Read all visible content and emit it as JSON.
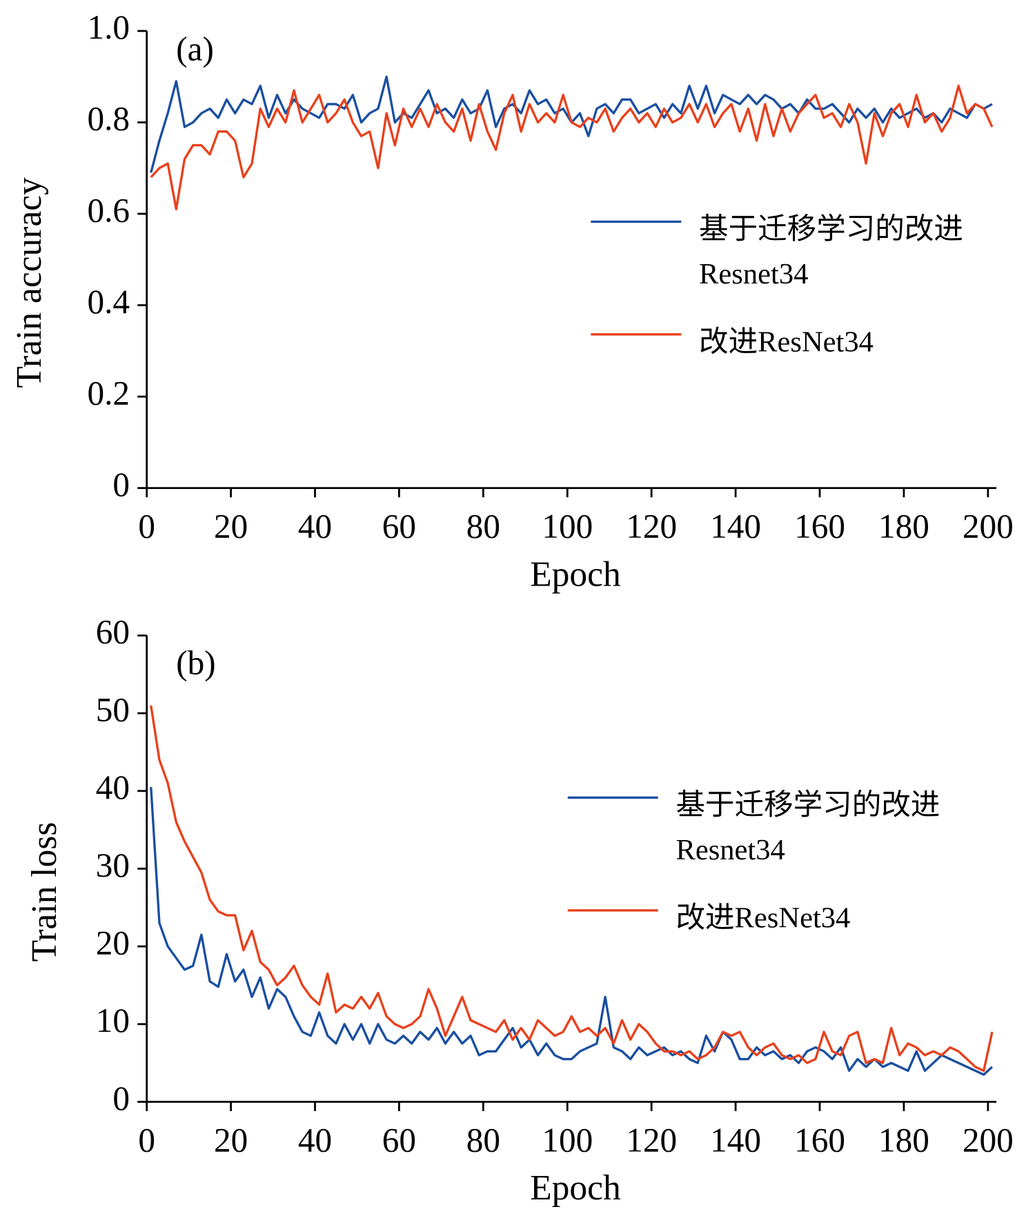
{
  "chart_data": [
    {
      "type": "line",
      "annotation": "(a)",
      "xlabel": "Epoch",
      "ylabel": "Train accuracy",
      "legend": "center right",
      "xlim": [
        0,
        202
      ],
      "ylim": [
        0,
        1
      ],
      "xticks": [
        0,
        20,
        40,
        60,
        80,
        100,
        120,
        140,
        160,
        180,
        200
      ],
      "yticks": [
        0,
        0.2,
        0.4,
        0.6,
        0.8,
        {
          "value": 1,
          "label": "1.0"
        }
      ],
      "x": [
        1,
        3,
        5,
        7,
        9,
        11,
        13,
        15,
        17,
        19,
        21,
        23,
        25,
        27,
        29,
        31,
        33,
        35,
        37,
        39,
        41,
        43,
        45,
        47,
        49,
        51,
        53,
        55,
        57,
        59,
        61,
        63,
        65,
        67,
        69,
        71,
        73,
        75,
        77,
        79,
        81,
        83,
        85,
        87,
        89,
        91,
        93,
        95,
        97,
        99,
        101,
        103,
        105,
        107,
        109,
        111,
        113,
        115,
        117,
        119,
        121,
        123,
        125,
        127,
        129,
        131,
        133,
        135,
        137,
        139,
        141,
        143,
        145,
        147,
        149,
        151,
        153,
        155,
        157,
        159,
        161,
        163,
        165,
        167,
        169,
        171,
        173,
        175,
        177,
        179,
        181,
        183,
        185,
        187,
        189,
        191,
        193,
        195,
        197,
        199,
        201
      ],
      "series": [
        {
          "name": "基于迁移学习的改进Resnet34",
          "color": "#1a4fa0",
          "values": [
            0.69,
            0.76,
            0.82,
            0.89,
            0.79,
            0.8,
            0.82,
            0.83,
            0.81,
            0.85,
            0.82,
            0.85,
            0.84,
            0.88,
            0.81,
            0.86,
            0.82,
            0.85,
            0.83,
            0.82,
            0.81,
            0.84,
            0.84,
            0.83,
            0.86,
            0.8,
            0.82,
            0.83,
            0.9,
            0.8,
            0.82,
            0.81,
            0.84,
            0.87,
            0.82,
            0.83,
            0.81,
            0.85,
            0.82,
            0.83,
            0.87,
            0.79,
            0.83,
            0.84,
            0.82,
            0.87,
            0.84,
            0.85,
            0.82,
            0.83,
            0.8,
            0.82,
            0.77,
            0.83,
            0.84,
            0.82,
            0.85,
            0.85,
            0.82,
            0.83,
            0.84,
            0.81,
            0.84,
            0.82,
            0.88,
            0.83,
            0.88,
            0.82,
            0.86,
            0.85,
            0.84,
            0.86,
            0.84,
            0.86,
            0.85,
            0.83,
            0.84,
            0.82,
            0.85,
            0.83,
            0.83,
            0.84,
            0.82,
            0.8,
            0.83,
            0.81,
            0.83,
            0.8,
            0.83,
            0.81,
            0.82,
            0.83,
            0.81,
            0.82,
            0.8,
            0.83,
            0.82,
            0.81,
            0.84,
            0.83,
            0.84
          ]
        },
        {
          "name": "改进ResNet34",
          "color": "#e8401c",
          "values": [
            0.68,
            0.7,
            0.71,
            0.61,
            0.72,
            0.75,
            0.75,
            0.73,
            0.78,
            0.78,
            0.76,
            0.68,
            0.71,
            0.83,
            0.79,
            0.83,
            0.8,
            0.87,
            0.8,
            0.83,
            0.86,
            0.8,
            0.82,
            0.85,
            0.8,
            0.77,
            0.78,
            0.7,
            0.82,
            0.75,
            0.83,
            0.79,
            0.83,
            0.79,
            0.84,
            0.8,
            0.78,
            0.83,
            0.76,
            0.84,
            0.78,
            0.74,
            0.82,
            0.86,
            0.78,
            0.84,
            0.8,
            0.82,
            0.8,
            0.86,
            0.8,
            0.79,
            0.81,
            0.8,
            0.83,
            0.78,
            0.81,
            0.83,
            0.8,
            0.82,
            0.79,
            0.83,
            0.8,
            0.81,
            0.84,
            0.8,
            0.84,
            0.79,
            0.82,
            0.84,
            0.78,
            0.83,
            0.76,
            0.84,
            0.77,
            0.83,
            0.78,
            0.82,
            0.84,
            0.86,
            0.81,
            0.82,
            0.79,
            0.84,
            0.8,
            0.71,
            0.82,
            0.77,
            0.82,
            0.84,
            0.79,
            0.86,
            0.8,
            0.82,
            0.78,
            0.81,
            0.88,
            0.82,
            0.84,
            0.83,
            0.79
          ]
        }
      ]
    },
    {
      "type": "line",
      "annotation": "(b)",
      "xlabel": "Epoch",
      "ylabel": "Train loss",
      "legend": "center right",
      "xlim": [
        0,
        202
      ],
      "ylim": [
        0,
        60
      ],
      "xticks": [
        0,
        20,
        40,
        60,
        80,
        100,
        120,
        140,
        160,
        180,
        200
      ],
      "yticks": [
        0,
        10,
        20,
        30,
        40,
        50,
        60
      ],
      "x": [
        1,
        3,
        5,
        7,
        9,
        11,
        13,
        15,
        17,
        19,
        21,
        23,
        25,
        27,
        29,
        31,
        33,
        35,
        37,
        39,
        41,
        43,
        45,
        47,
        49,
        51,
        53,
        55,
        57,
        59,
        61,
        63,
        65,
        67,
        69,
        71,
        73,
        75,
        77,
        79,
        81,
        83,
        85,
        87,
        89,
        91,
        93,
        95,
        97,
        99,
        101,
        103,
        105,
        107,
        109,
        111,
        113,
        115,
        117,
        119,
        121,
        123,
        125,
        127,
        129,
        131,
        133,
        135,
        137,
        139,
        141,
        143,
        145,
        147,
        149,
        151,
        153,
        155,
        157,
        159,
        161,
        163,
        165,
        167,
        169,
        171,
        173,
        175,
        177,
        179,
        181,
        183,
        185,
        187,
        189,
        191,
        193,
        195,
        197,
        199,
        201
      ],
      "series": [
        {
          "name": "基于迁移学习的改进Resnet34",
          "color": "#1a4fa0",
          "values": [
            40.5,
            23,
            20,
            18.5,
            17,
            17.5,
            21.5,
            15.5,
            14.8,
            19,
            15.5,
            17,
            13.5,
            16,
            12,
            14.5,
            13.5,
            11,
            9,
            8.5,
            11.5,
            8.5,
            7.5,
            10,
            8,
            10,
            7.5,
            10,
            8,
            7.5,
            8.5,
            7.5,
            9,
            8,
            9.5,
            7.5,
            9,
            7.5,
            8.5,
            6,
            6.5,
            6.5,
            8,
            9.5,
            7,
            8,
            6,
            7.5,
            6,
            5.5,
            5.5,
            6.5,
            7,
            7.5,
            13.5,
            7,
            6.5,
            5.5,
            7,
            6,
            6.5,
            7,
            6,
            6.5,
            5.5,
            5,
            8.5,
            6.5,
            9,
            8,
            5.5,
            5.5,
            7,
            6,
            6.5,
            5.5,
            6,
            5,
            6.5,
            7,
            6.5,
            5.5,
            7,
            4,
            5.5,
            4.5,
            5.5,
            4.5,
            5,
            4.5,
            4,
            6.5,
            4,
            5,
            6,
            5.5,
            5,
            4.5,
            4,
            3.5,
            4.5
          ]
        },
        {
          "name": "改进ResNet34",
          "color": "#e8401c",
          "values": [
            51,
            44,
            41,
            36,
            33.5,
            31.5,
            29.5,
            26,
            24.5,
            24,
            24,
            19.5,
            22,
            18,
            17,
            15,
            16,
            17.5,
            15,
            13.5,
            12.5,
            16.5,
            11.5,
            12.5,
            12,
            13.5,
            12,
            14,
            11,
            10,
            9.5,
            10,
            11,
            14.5,
            12,
            8.5,
            11,
            13.5,
            10.5,
            10,
            9.5,
            9,
            10.5,
            8,
            9.5,
            8,
            10.5,
            9.5,
            8.5,
            9,
            11,
            9,
            9.5,
            8.5,
            9.5,
            7.5,
            10.5,
            8,
            10,
            9,
            7.5,
            6.5,
            6.5,
            6,
            6.5,
            5.5,
            6,
            7,
            9,
            8.5,
            9,
            7,
            6,
            7,
            7.5,
            6,
            5.5,
            6,
            5,
            5.5,
            9,
            6.5,
            6,
            8.5,
            9,
            5,
            5.5,
            5,
            9.5,
            6,
            7.5,
            7,
            6,
            6.5,
            6,
            7,
            6.5,
            5.5,
            4.5,
            4,
            9
          ]
        }
      ]
    }
  ]
}
